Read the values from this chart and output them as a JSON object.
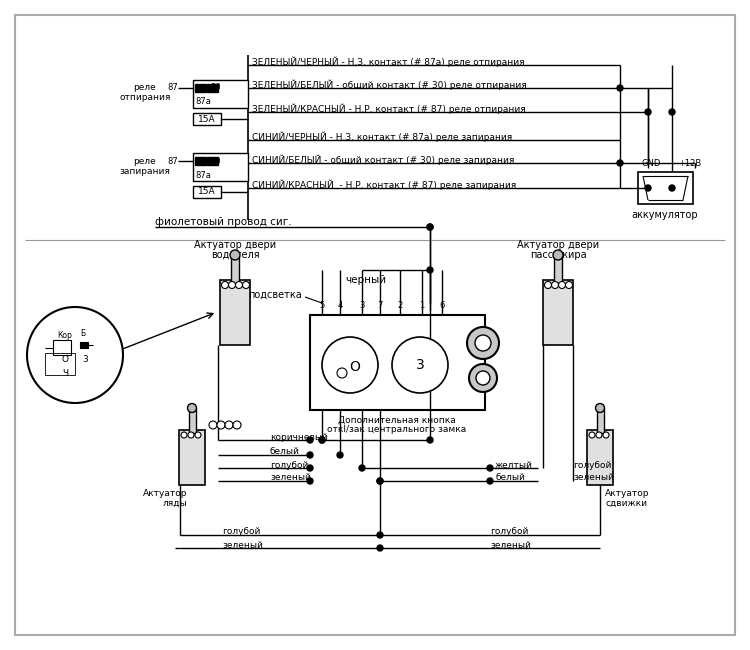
{
  "bg_color": "#ffffff",
  "tc": "#000000",
  "relay_labels": [
    "ЗЕЛЕНЫЙ/ЧЕРНЫЙ - Н.З. контакт (# 87а) реле отпирания",
    "ЗЕЛЕНЫЙ/БЕЛЫЙ - общий контакт (# 30) реле отпирания",
    "ЗЕЛЕНЫЙ/КРАСНЫЙ - Н.Р. контакт (# 87) реле отпирания",
    "СИНИЙ/ЧЕРНЫЙ - Н.З. контакт (# 87а) реле запирания",
    "СИНИЙ/БЕЛЫЙ - общий контакт (# 30) реле запирания",
    "СИНИЙ/КРАСНЫЙ  - Н.Р. контакт (# 87) реле запирания"
  ],
  "pin_labels": [
    "5",
    "4",
    "3",
    "7",
    "2",
    "1",
    "6"
  ]
}
